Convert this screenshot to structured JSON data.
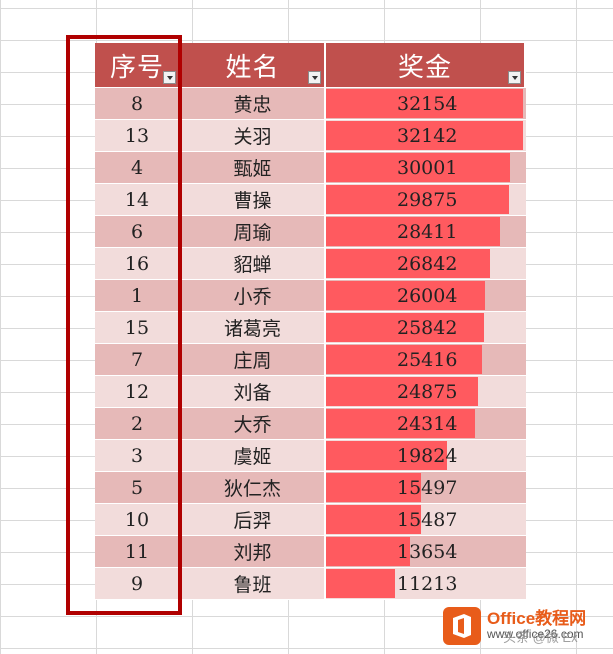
{
  "table": {
    "headers": {
      "id": "序号",
      "name": "姓名",
      "bonus": "奖金"
    },
    "max_bonus": 32154,
    "rows": [
      {
        "id": "8",
        "name": "黄忠",
        "bonus": "32154",
        "bonus_value": 32154
      },
      {
        "id": "13",
        "name": "关羽",
        "bonus": "32142",
        "bonus_value": 32142
      },
      {
        "id": "4",
        "name": "甄姬",
        "bonus": "30001",
        "bonus_value": 30001
      },
      {
        "id": "14",
        "name": "曹操",
        "bonus": "29875",
        "bonus_value": 29875
      },
      {
        "id": "6",
        "name": "周瑜",
        "bonus": "28411",
        "bonus_value": 28411
      },
      {
        "id": "16",
        "name": "貂蝉",
        "bonus": "26842",
        "bonus_value": 26842
      },
      {
        "id": "1",
        "name": "小乔",
        "bonus": "26004",
        "bonus_value": 26004
      },
      {
        "id": "15",
        "name": "诸葛亮",
        "bonus": "25842",
        "bonus_value": 25842
      },
      {
        "id": "7",
        "name": "庄周",
        "bonus": "25416",
        "bonus_value": 25416
      },
      {
        "id": "12",
        "name": "刘备",
        "bonus": "24875",
        "bonus_value": 24875
      },
      {
        "id": "2",
        "name": "大乔",
        "bonus": "24314",
        "bonus_value": 24314
      },
      {
        "id": "3",
        "name": "虞姬",
        "bonus": "19824",
        "bonus_value": 19824
      },
      {
        "id": "5",
        "name": "狄仁杰",
        "bonus": "15497",
        "bonus_value": 15497
      },
      {
        "id": "10",
        "name": "后羿",
        "bonus": "15487",
        "bonus_value": 15487
      },
      {
        "id": "11",
        "name": "刘邦",
        "bonus": "13654",
        "bonus_value": 13654
      },
      {
        "id": "9",
        "name": "鲁班",
        "bonus": "11213",
        "bonus_value": 11213
      }
    ]
  },
  "colors": {
    "header_bg": "#c0504d",
    "band_dark": "#e6b9b8",
    "band_light": "#f2dcdb",
    "databar": "#ff5a5f",
    "highlight_border": "#b00000"
  },
  "watermark": {
    "title": "Office教程网",
    "subtitle": "www.office26.com",
    "author": "头条 @微 Ex"
  }
}
